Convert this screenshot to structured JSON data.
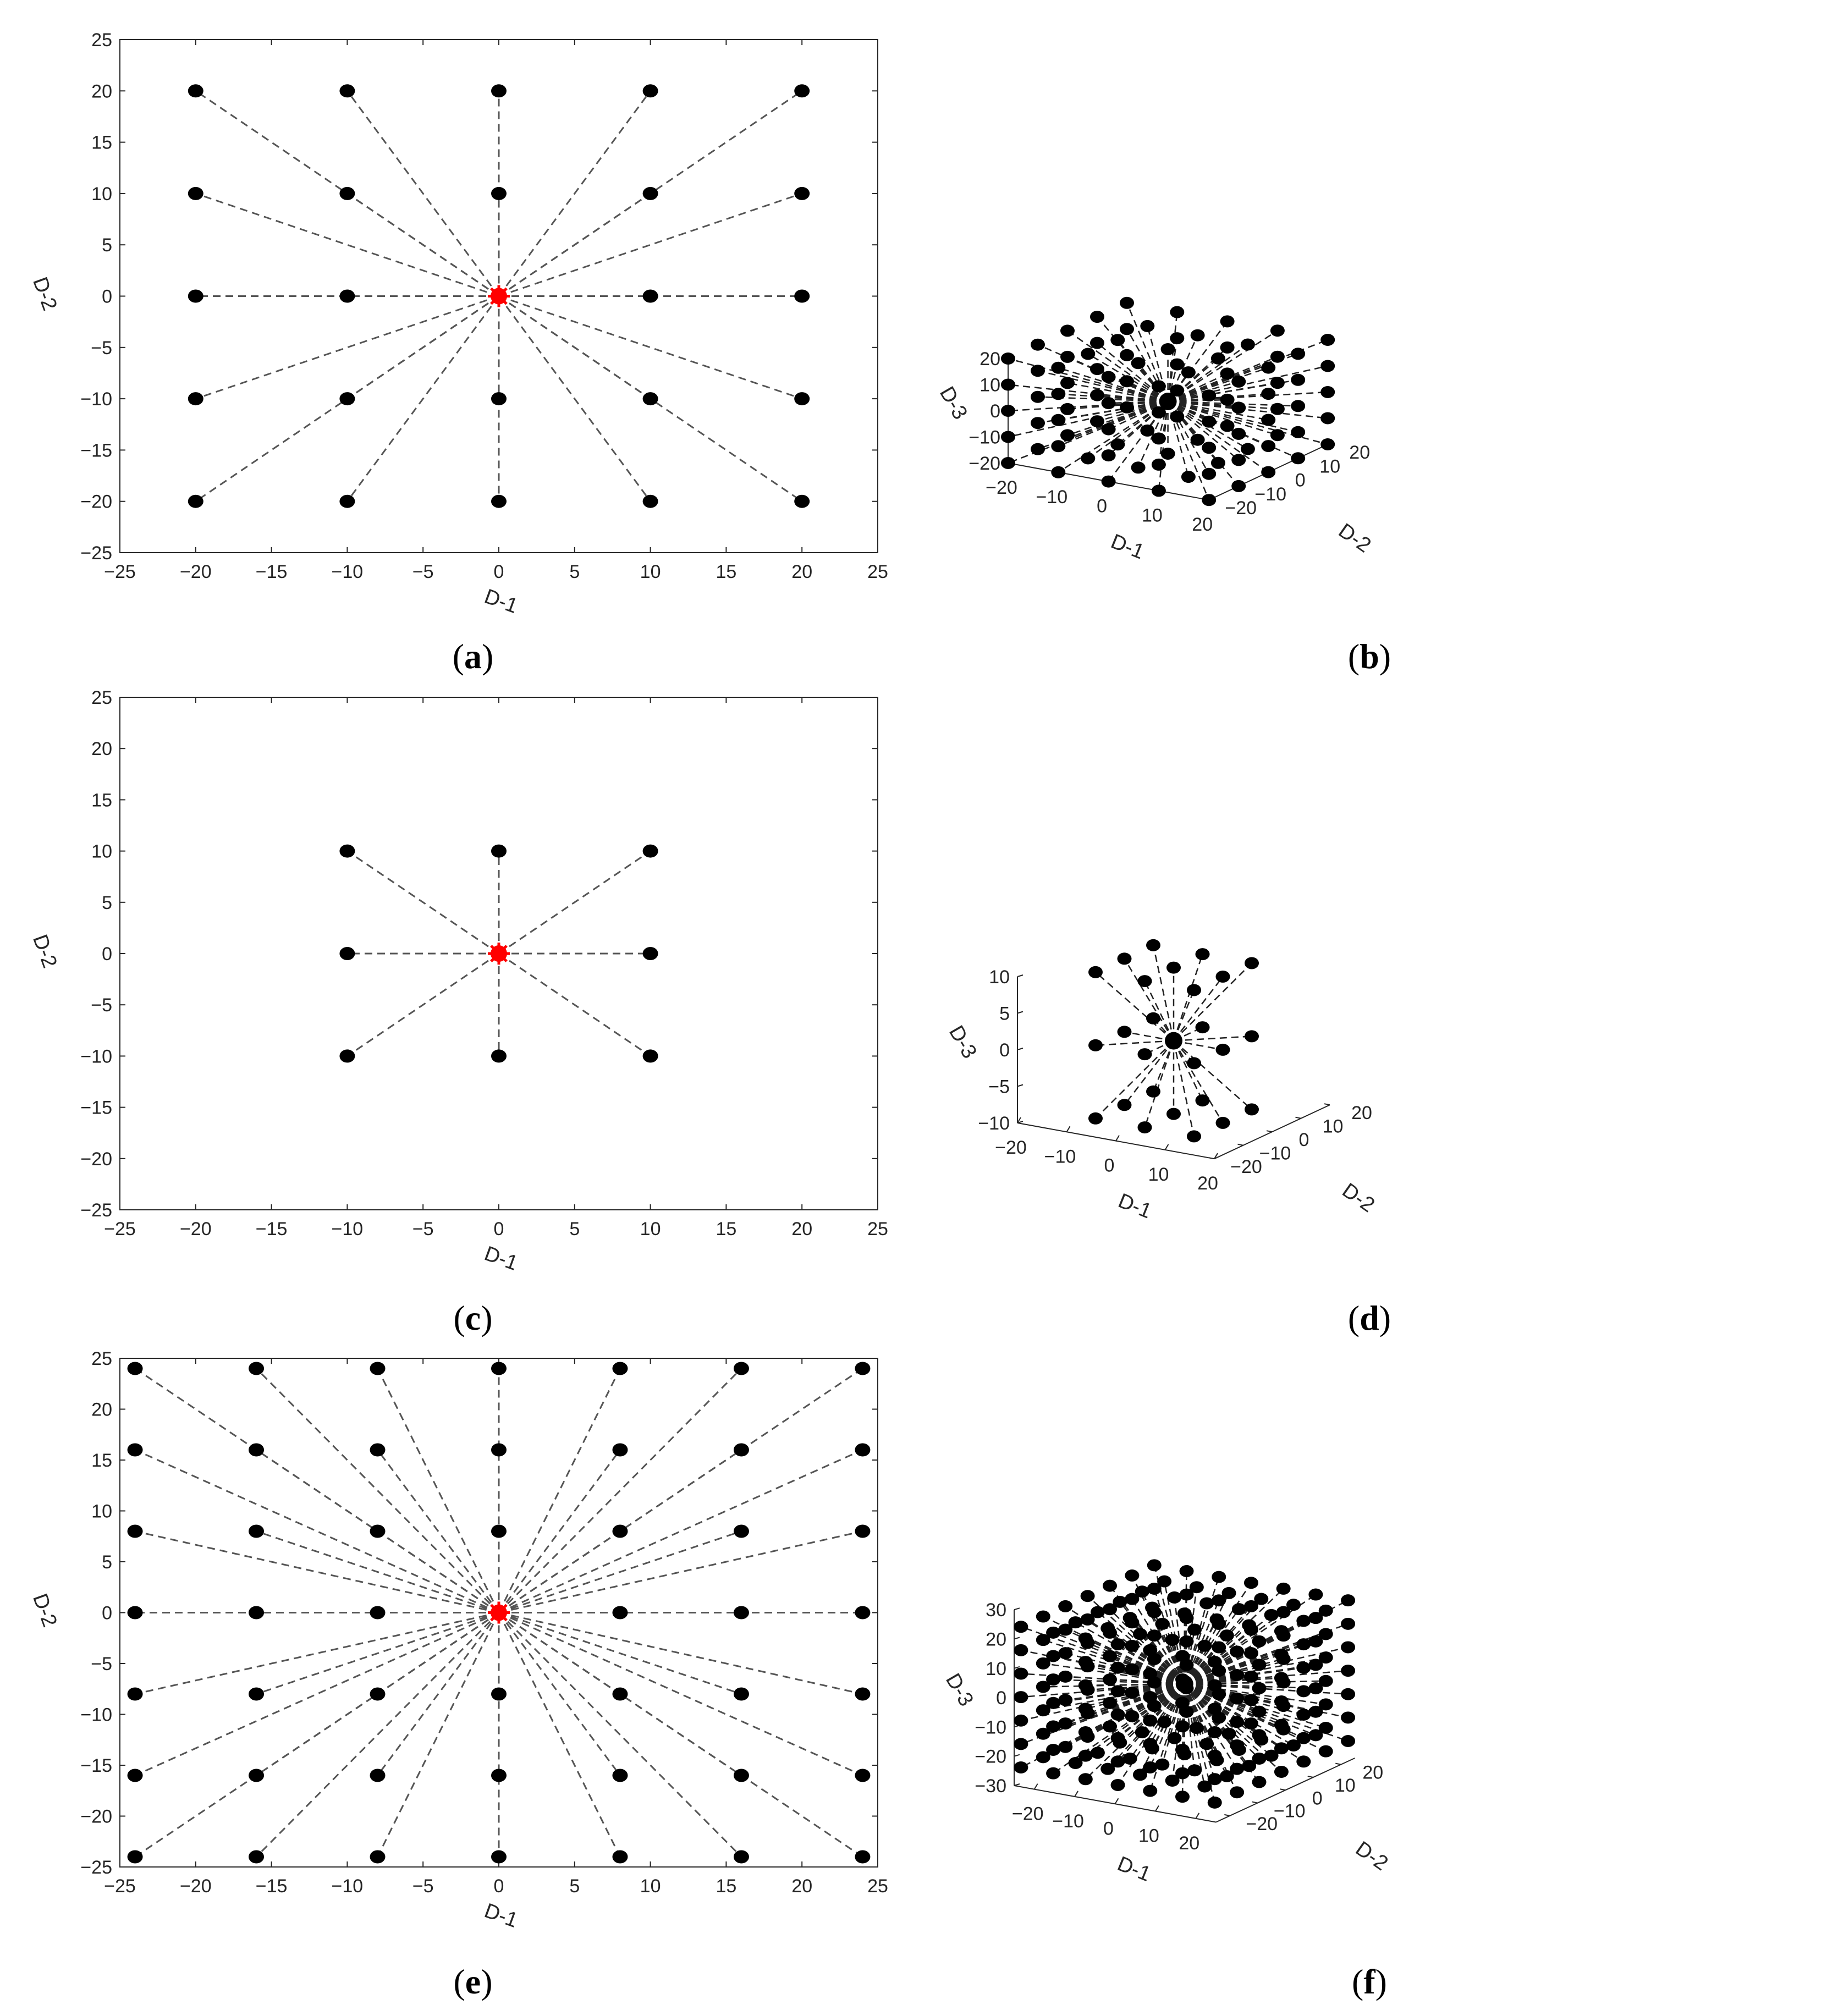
{
  "figure": {
    "panels": [
      {
        "caption_letter": "a"
      },
      {
        "caption_letter": "b"
      },
      {
        "caption_letter": "c"
      },
      {
        "caption_letter": "d"
      },
      {
        "caption_letter": "e"
      },
      {
        "caption_letter": "f"
      }
    ]
  },
  "chart_data": [
    {
      "type": "scatter",
      "panel": "a",
      "xlabel": "D-1",
      "ylabel": "D-2",
      "xlim": [
        -25,
        25
      ],
      "ylim": [
        -25,
        25
      ],
      "xticks": [
        -25,
        -20,
        -15,
        -10,
        -5,
        0,
        5,
        10,
        15,
        20,
        25
      ],
      "yticks": [
        -25,
        -20,
        -15,
        -10,
        -5,
        0,
        5,
        10,
        15,
        20,
        25
      ],
      "grid": false,
      "center": [
        0,
        0
      ],
      "center_color": "#ff0000",
      "point_color": "#000000",
      "line_color": "#555555",
      "points": [
        [
          -20,
          20
        ],
        [
          -10,
          20
        ],
        [
          0,
          20
        ],
        [
          10,
          20
        ],
        [
          20,
          20
        ],
        [
          -20,
          10
        ],
        [
          -10,
          10
        ],
        [
          0,
          10
        ],
        [
          10,
          10
        ],
        [
          20,
          10
        ],
        [
          -20,
          0
        ],
        [
          -10,
          0
        ],
        [
          10,
          0
        ],
        [
          20,
          0
        ],
        [
          -20,
          -10
        ],
        [
          -10,
          -10
        ],
        [
          0,
          -10
        ],
        [
          10,
          -10
        ],
        [
          20,
          -10
        ],
        [
          -20,
          -20
        ],
        [
          -10,
          -20
        ],
        [
          0,
          -20
        ],
        [
          10,
          -20
        ],
        [
          20,
          -20
        ]
      ]
    },
    {
      "type": "scatter3d",
      "panel": "b",
      "xlabel": "D-1",
      "ylabel": "D-2",
      "zlabel": "D-3",
      "xlim": [
        -20,
        20
      ],
      "ylim": [
        -20,
        20
      ],
      "zlim": [
        -20,
        20
      ],
      "xticks": [
        -20,
        -10,
        0,
        10,
        20
      ],
      "yticks": [
        -20,
        -10,
        0,
        10,
        20
      ],
      "zticks": [
        -20,
        -10,
        0,
        10,
        20
      ],
      "grid_values": [
        -20,
        -10,
        0,
        10,
        20
      ],
      "shell": "outer_cube_surface",
      "center": [
        0,
        0,
        0
      ],
      "point_color": "#000000",
      "line_color": "#222222"
    },
    {
      "type": "scatter",
      "panel": "c",
      "xlabel": "D-1",
      "ylabel": "D-2",
      "xlim": [
        -25,
        25
      ],
      "ylim": [
        -25,
        25
      ],
      "xticks": [
        -25,
        -20,
        -15,
        -10,
        -5,
        0,
        5,
        10,
        15,
        20,
        25
      ],
      "yticks": [
        -25,
        -20,
        -15,
        -10,
        -5,
        0,
        5,
        10,
        15,
        20,
        25
      ],
      "grid": false,
      "center": [
        0,
        0
      ],
      "center_color": "#ff0000",
      "point_color": "#000000",
      "line_color": "#555555",
      "points": [
        [
          -10,
          10
        ],
        [
          0,
          10
        ],
        [
          10,
          10
        ],
        [
          -10,
          0
        ],
        [
          10,
          0
        ],
        [
          -10,
          -10
        ],
        [
          0,
          -10
        ],
        [
          10,
          -10
        ]
      ]
    },
    {
      "type": "scatter3d",
      "panel": "d",
      "xlabel": "D-1",
      "ylabel": "D-2",
      "zlabel": "D-3",
      "xlim": [
        -20,
        20
      ],
      "ylim": [
        -20,
        20
      ],
      "zlim": [
        -10,
        10
      ],
      "xticks": [
        -20,
        -10,
        0,
        10,
        20
      ],
      "yticks": [
        -20,
        -10,
        0,
        10,
        20
      ],
      "zticks": [
        -10,
        -5,
        0,
        5,
        10
      ],
      "grid_values": [
        -10,
        0,
        10
      ],
      "shell": "outer_cube_surface",
      "center": [
        0,
        0,
        0
      ],
      "point_color": "#000000",
      "line_color": "#222222"
    },
    {
      "type": "scatter",
      "panel": "e",
      "xlabel": "D-1",
      "ylabel": "D-2",
      "xlim": [
        -25,
        25
      ],
      "ylim": [
        -25,
        25
      ],
      "xticks": [
        -25,
        -20,
        -15,
        -10,
        -5,
        0,
        5,
        10,
        15,
        20,
        25
      ],
      "yticks": [
        -25,
        -20,
        -15,
        -10,
        -5,
        0,
        5,
        10,
        15,
        20,
        25
      ],
      "grid": false,
      "center": [
        0,
        0
      ],
      "center_color": "#ff0000",
      "point_color": "#000000",
      "line_color": "#555555",
      "grid_values": [
        -24,
        -16,
        -8,
        0,
        8,
        16,
        24
      ],
      "shell": "all_except_center"
    },
    {
      "type": "scatter3d",
      "panel": "f",
      "xlabel": "D-1",
      "ylabel": "D-2",
      "zlabel": "D-3",
      "xlim": [
        -25,
        25
      ],
      "ylim": [
        -25,
        25
      ],
      "zlim": [
        -30,
        30
      ],
      "xticks": [
        -20,
        -10,
        0,
        10,
        20
      ],
      "yticks": [
        -20,
        -10,
        0,
        10,
        20
      ],
      "zticks": [
        -30,
        -20,
        -10,
        0,
        10,
        20,
        30
      ],
      "grid_values": [
        -24,
        -16,
        -8,
        0,
        8,
        16,
        24
      ],
      "shell": "outer_cube_surface",
      "center": [
        0,
        0,
        0
      ],
      "point_color": "#000000",
      "line_color": "#222222"
    }
  ]
}
